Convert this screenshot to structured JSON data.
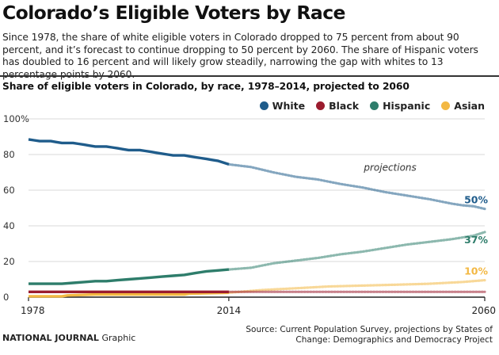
{
  "header": {
    "title": "Colorado’s Eligible Voters by Race",
    "subtitle": "Since 1978, the share of white eligible voters in Colorado dropped to 75 percent from about 90 percent, and it’s forecast to continue dropping to 50 percent by 2060. The share of Hispanic voters has doubled to 16 percent and will likely grow steadily, narrowing the gap with whites to 13 percentage points by 2060."
  },
  "footer": {
    "brand": "NATIONAL JOURNAL",
    "brand_suffix": "Graphic",
    "source": "Source: Current Population Survey, projections by States of Change: Demographics and Democracy Project"
  },
  "chart_data": {
    "type": "line",
    "title": "Share of eligible voters in Colorado, by race, 1978–2014, projected to 2060",
    "xlabel": "",
    "ylabel": "",
    "xlim": [
      1978,
      2060
    ],
    "ylim": [
      0,
      100
    ],
    "x_ticks": [
      "1978",
      "2014",
      "2060"
    ],
    "y_ticks": [
      "0",
      "20",
      "40",
      "60",
      "80",
      "100%"
    ],
    "legend_position": "top-right",
    "annotation": "projections",
    "actual_end_year": 2014,
    "series": [
      {
        "name": "White",
        "color": "#1f5c8b",
        "end_label": "50%",
        "actual": {
          "x": [
            1978,
            1979,
            1980,
            1981,
            1982,
            1983,
            1984,
            1985,
            1986,
            1987,
            1988,
            1989,
            1990,
            1991,
            1992,
            1993,
            1994,
            1995,
            1996,
            1997,
            1998,
            1999,
            2000,
            2001,
            2002,
            2003,
            2004,
            2005,
            2006,
            2007,
            2008,
            2009,
            2010,
            2011,
            2012,
            2013,
            2014
          ],
          "y": [
            88.5,
            88,
            87.5,
            87.5,
            87.5,
            87,
            86.5,
            86.5,
            86.5,
            86,
            85.5,
            85,
            84.5,
            84.5,
            84.5,
            84,
            83.5,
            83,
            82.5,
            82.5,
            82.5,
            82,
            81.5,
            81,
            80.5,
            80,
            79.5,
            79.5,
            79.5,
            79,
            78.5,
            78,
            77.5,
            77,
            76.5,
            75.5,
            74.5
          ]
        },
        "projected": {
          "x": [
            2014,
            2018,
            2022,
            2026,
            2030,
            2034,
            2038,
            2042,
            2046,
            2050,
            2054,
            2056,
            2058,
            2060
          ],
          "y": [
            74.5,
            73,
            70,
            67.5,
            66,
            63.5,
            61.5,
            59,
            57,
            55,
            52.5,
            51.5,
            51,
            49.5
          ]
        }
      },
      {
        "name": "Black",
        "color": "#9b1c2e",
        "end_label": "",
        "actual": {
          "x": [
            1978,
            1990,
            2000,
            2010,
            2014
          ],
          "y": [
            3,
            3,
            3,
            3,
            3
          ]
        },
        "projected": {
          "x": [
            2014,
            2060
          ],
          "y": [
            3,
            3
          ]
        }
      },
      {
        "name": "Hispanic",
        "color": "#2e7d6b",
        "end_label": "37%",
        "actual": {
          "x": [
            1978,
            1980,
            1982,
            1984,
            1986,
            1988,
            1990,
            1992,
            1994,
            1996,
            1998,
            2000,
            2002,
            2004,
            2006,
            2008,
            2010,
            2012,
            2014
          ],
          "y": [
            7.5,
            7.5,
            7.5,
            7.5,
            8,
            8.5,
            9,
            9,
            9.5,
            10,
            10.5,
            11,
            11.5,
            12,
            12.5,
            13.5,
            14.5,
            15,
            15.5
          ]
        },
        "projected": {
          "x": [
            2014,
            2018,
            2022,
            2026,
            2030,
            2034,
            2038,
            2042,
            2046,
            2050,
            2054,
            2058,
            2060
          ],
          "y": [
            15.5,
            16.5,
            19,
            20.5,
            22,
            24,
            25.5,
            27.5,
            29.5,
            31,
            32.5,
            34.5,
            36.5
          ]
        }
      },
      {
        "name": "Asian",
        "color": "#f3b843",
        "end_label": "10%",
        "actual": {
          "x": [
            1978,
            1984,
            1985,
            1990,
            2000,
            2006,
            2007,
            2014
          ],
          "y": [
            0.5,
            0.5,
            1,
            1.5,
            1.5,
            1.5,
            2,
            2.5
          ]
        },
        "projected": {
          "x": [
            2014,
            2020,
            2026,
            2032,
            2038,
            2044,
            2050,
            2056,
            2060
          ],
          "y": [
            2.5,
            4,
            5,
            6,
            6.5,
            7,
            7.5,
            8.5,
            9.5
          ]
        }
      }
    ]
  }
}
